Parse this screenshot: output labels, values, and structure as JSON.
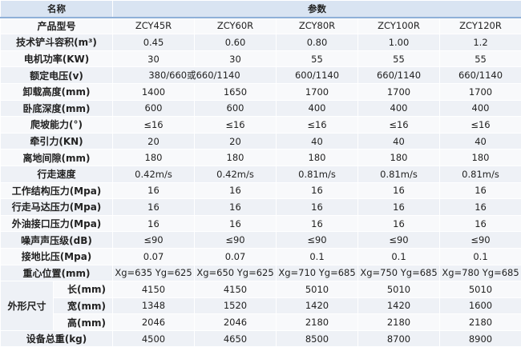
{
  "table": {
    "header": {
      "name": "名称",
      "params": "参数"
    },
    "rows": [
      {
        "label": "产品型号",
        "values": [
          "ZCY45R",
          "ZCY60R",
          "ZCY80R",
          "ZCY100R",
          "ZCY120R"
        ]
      },
      {
        "label": "技术铲斗容积(m³)",
        "values": [
          "0.45",
          "0.60",
          "0.80",
          "1.00",
          "1.2"
        ]
      },
      {
        "label": "电机功率(KW)",
        "values": [
          "30",
          "30",
          "55",
          "55",
          "55"
        ]
      },
      {
        "label": "额定电压(v)",
        "values": [
          "380/660或660/1140",
          "600/1140",
          "660/1140",
          "660/1140"
        ]
      },
      {
        "label": "卸载高度(mm)",
        "values": [
          "1400",
          "1650",
          "1700",
          "1700",
          "1700"
        ]
      },
      {
        "label": "卧底深度(mm)",
        "values": [
          "600",
          "600",
          "400",
          "400",
          "400"
        ]
      },
      {
        "label": "爬坡能力(°)",
        "values": [
          "≤16",
          "≤16",
          "≤16",
          "≤16",
          "≤16"
        ]
      },
      {
        "label": "牵引力(KN)",
        "values": [
          "20",
          "20",
          "40",
          "40",
          "40"
        ]
      },
      {
        "label": "离地间隙(mm)",
        "values": [
          "180",
          "180",
          "180",
          "180",
          "180"
        ]
      },
      {
        "label": "行走速度",
        "values": [
          "0.42m/s",
          "0.42m/s",
          "0.81m/s",
          "0.81m/s",
          "0.81m/s"
        ]
      },
      {
        "label": "工作结构压力(Mpa)",
        "values": [
          "16",
          "16",
          "16",
          "16",
          "16"
        ]
      },
      {
        "label": "行走马达压力(Mpa)",
        "values": [
          "16",
          "16",
          "16",
          "16",
          "16"
        ]
      },
      {
        "label": "外油接口压力(Mpa)",
        "values": [
          "16",
          "16",
          "16",
          "16",
          "16"
        ]
      },
      {
        "label": "噪声声压级(dB)",
        "values": [
          "≤90",
          "≤90",
          "≤90",
          "≤90",
          "≤90"
        ]
      },
      {
        "label": "接地比压(Mpa)",
        "values": [
          "0.07",
          "0.07",
          "0.1",
          "0.1",
          "0.1"
        ]
      },
      {
        "label": "重心位置(mm)",
        "values": [
          "Xg=635 Yg=625",
          "Xg=650 Yg=625",
          "Xg=710 Yg=685",
          "Xg=750 Yg=685",
          "Xg=780 Yg=685"
        ]
      }
    ],
    "dimensions": {
      "label": "外形尺寸",
      "rows": [
        {
          "label": "长(mm)",
          "values": [
            "4150",
            "4150",
            "5010",
            "5010",
            "5010"
          ]
        },
        {
          "label": "宽(mm)",
          "values": [
            "1348",
            "1520",
            "1420",
            "1420",
            "1600"
          ]
        },
        {
          "label": "高(mm)",
          "values": [
            "2046",
            "2046",
            "2180",
            "2180",
            "2180"
          ]
        }
      ]
    },
    "rows_after": [
      {
        "label": "设备总重(kg)",
        "values": [
          "4500",
          "4650",
          "8500",
          "8700",
          "8900"
        ]
      }
    ]
  }
}
